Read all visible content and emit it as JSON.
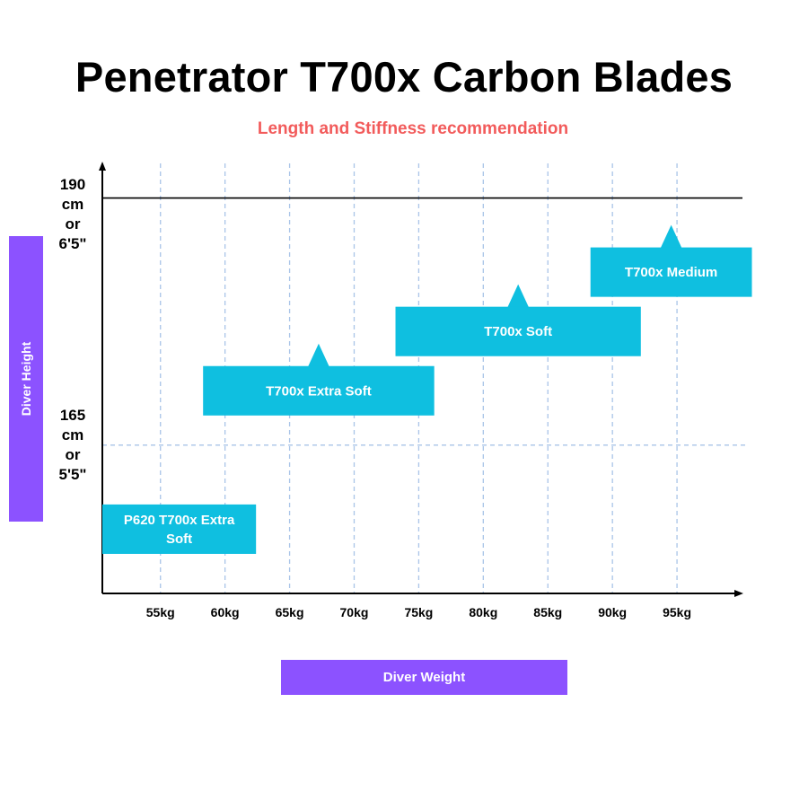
{
  "title": "Penetrator T700x Carbon Blades",
  "subtitle": "Length and Stiffness recommendation",
  "colors": {
    "accent_purple": "#8c52ff",
    "blade_box": "#0fbfe0",
    "subtitle_red": "#f25b5b",
    "grid": "#a9c4e8"
  },
  "y_axis": {
    "label": "Diver Height",
    "reference_lines": [
      {
        "value_cm": 190,
        "lines": [
          "190",
          "cm",
          "or",
          "6'5\""
        ],
        "style": "solid"
      },
      {
        "value_cm": 165,
        "lines": [
          "165",
          "cm",
          "or",
          "5'5\""
        ],
        "style": "dashed"
      }
    ]
  },
  "x_axis": {
    "label": "Diver Weight"
  },
  "chart_data": {
    "type": "range",
    "title": "Penetrator T700x Carbon Blades",
    "subtitle": "Length and Stiffness recommendation",
    "xlabel": "Diver Weight",
    "ylabel": "Diver Height",
    "x_ticks": [
      55,
      60,
      65,
      70,
      75,
      80,
      85,
      90,
      95
    ],
    "x_tick_labels": [
      "55kg",
      "60kg",
      "65kg",
      "70kg",
      "75kg",
      "80kg",
      "85kg",
      "90kg",
      "95kg"
    ],
    "xlim": [
      50.5,
      100
    ],
    "ylim": [
      150,
      193.5
    ],
    "grid": "vertical dashed at each tick",
    "series": [
      {
        "name": "P620 T700x Extra Soft",
        "label_lines": [
          "P620 T700x Extra",
          "Soft"
        ],
        "x_range": [
          50.5,
          62.4
        ],
        "y_range": [
          154,
          159
        ],
        "marker": false
      },
      {
        "name": "T700x Extra Soft",
        "label_lines": [
          "T700x Extra Soft"
        ],
        "x_range": [
          58.3,
          76.2
        ],
        "y_range": [
          168,
          173
        ],
        "marker": true
      },
      {
        "name": "T700x Soft",
        "label_lines": [
          "T700x Soft"
        ],
        "x_range": [
          73.2,
          92.2
        ],
        "y_range": [
          174,
          179
        ],
        "marker": true
      },
      {
        "name": "T700x Medium",
        "label_lines": [
          "T700x Medium"
        ],
        "x_range": [
          88.3,
          100.8
        ],
        "y_range": [
          180,
          185
        ],
        "marker": true
      }
    ]
  }
}
